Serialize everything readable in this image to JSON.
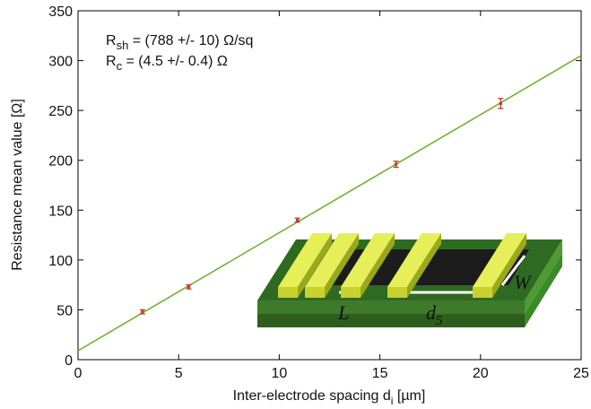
{
  "chart_data": {
    "type": "scatter",
    "x_label": {
      "main": "Inter-electrode spacing d",
      "sub": "i",
      "rest": " [µm]"
    },
    "y_label": "Resistance mean value [Ω]",
    "annotations": [
      {
        "main": "R",
        "sub": "sh",
        "rest": " = (788 +/- 10) Ω/sq"
      },
      {
        "main": "R",
        "sub": "c",
        "rest": " = (4.5 +/- 0.4) Ω"
      }
    ],
    "series": [
      {
        "color": "#c0392b",
        "x": [
          3.2,
          5.5,
          10.9,
          15.8,
          21.0
        ],
        "values": [
          48,
          73,
          140,
          196,
          257
        ],
        "errors": [
          2,
          2,
          2,
          3,
          5
        ]
      },
      {
        "color": "#6ab023",
        "x": [
          0,
          25
        ],
        "values": [
          9,
          305
        ]
      }
    ],
    "xlim": [
      0,
      25
    ],
    "xticks": [
      0,
      5,
      10,
      15,
      20,
      25
    ],
    "ylim": [
      0,
      350
    ],
    "yticks": [
      0,
      50,
      100,
      150,
      200,
      250,
      300,
      350
    ],
    "inset_labels": {
      "L": "L",
      "d": {
        "main": "d",
        "sub": "5"
      },
      "W": "W"
    }
  }
}
